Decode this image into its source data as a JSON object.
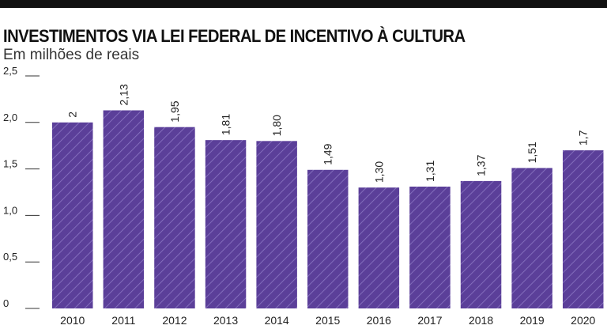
{
  "title": "INVESTIMENTOS VIA LEI FEDERAL DE INCENTIVO À CULTURA",
  "subtitle": "Em milhões de reais",
  "colors": {
    "bar_fill": "#5b3f99",
    "hatch": "#8c77c4",
    "text": "#222222",
    "axis": "#333333"
  },
  "chart_data": {
    "type": "bar",
    "title": "INVESTIMENTOS VIA LEI FEDERAL DE INCENTIVO À CULTURA",
    "subtitle": "Em milhões de reais",
    "xlabel": "",
    "ylabel": "",
    "categories": [
      "2010",
      "2011",
      "2012",
      "2013",
      "2014",
      "2015",
      "2016",
      "2017",
      "2018",
      "2019",
      "2020"
    ],
    "values": [
      2,
      2.13,
      1.95,
      1.81,
      1.8,
      1.49,
      1.3,
      1.31,
      1.37,
      1.51,
      1.7
    ],
    "value_labels": [
      "2",
      "2,13",
      "1,95",
      "1,81",
      "1,80",
      "1,49",
      "1,30",
      "1,31",
      "1,37",
      "1,51",
      "1,7"
    ],
    "ylim": [
      0,
      2.5
    ],
    "yticks": [
      0,
      0.5,
      1.0,
      1.5,
      2.0,
      2.5
    ],
    "ytick_labels": [
      "0",
      "0,5",
      "1,0",
      "1,5",
      "2,0",
      "2,5"
    ],
    "grid": false,
    "legend": "none",
    "bar_pattern": "diagonal-hatch"
  }
}
